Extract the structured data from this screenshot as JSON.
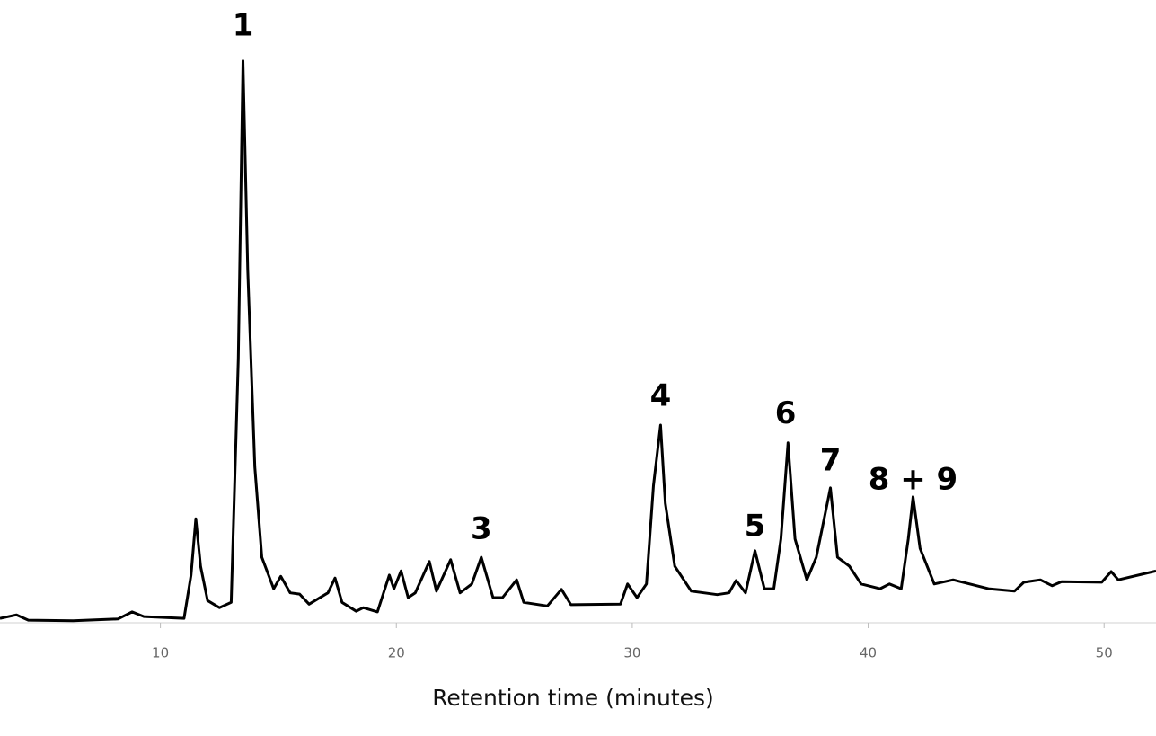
{
  "chart_data": {
    "type": "line",
    "x_label": "Retention time (minutes)",
    "x": [
      3.2,
      3.9,
      4.4,
      6.3,
      8.2,
      8.8,
      9.3,
      11.0,
      11.3,
      11.5,
      11.7,
      12.0,
      12.5,
      13.0,
      13.3,
      13.5,
      13.7,
      14.0,
      14.3,
      14.8,
      15.1,
      15.5,
      15.9,
      16.3,
      17.1,
      17.4,
      17.7,
      18.3,
      18.6,
      19.2,
      19.7,
      19.9,
      20.2,
      20.5,
      20.8,
      21.4,
      21.7,
      22.3,
      22.7,
      23.2,
      23.6,
      24.1,
      24.5,
      25.1,
      25.4,
      26.4,
      27.0,
      27.4,
      29.5,
      29.8,
      30.2,
      30.6,
      30.9,
      31.2,
      31.4,
      31.8,
      32.5,
      33.6,
      34.1,
      34.4,
      34.8,
      35.2,
      35.6,
      36.0,
      36.3,
      36.6,
      36.9,
      37.4,
      37.8,
      38.4,
      38.7,
      39.2,
      39.7,
      40.5,
      40.9,
      41.4,
      41.7,
      41.9,
      42.2,
      42.8,
      43.6,
      45.1,
      46.2,
      46.6,
      47.3,
      47.8,
      48.2,
      49.9,
      50.3,
      50.6,
      52.2
    ],
    "series": [
      {
        "color": "#000000",
        "values": [
          1.8,
          2.4,
          1.5,
          1.4,
          1.7,
          2.9,
          2.1,
          1.8,
          9.1,
          18.6,
          10.6,
          4.8,
          3.6,
          4.5,
          45.5,
          95.8,
          60.6,
          27.3,
          12.1,
          6.8,
          8.9,
          6.1,
          5.9,
          4.2,
          6.1,
          8.6,
          4.5,
          3.0,
          3.6,
          2.9,
          9.1,
          6.8,
          9.8,
          5.3,
          6.1,
          11.4,
          6.4,
          11.7,
          6.1,
          7.6,
          12.1,
          5.3,
          5.3,
          8.3,
          4.5,
          3.9,
          6.7,
          4.1,
          4.2,
          7.6,
          5.3,
          7.6,
          24.2,
          34.4,
          21.2,
          10.6,
          6.4,
          5.8,
          6.1,
          8.2,
          6.1,
          13.2,
          6.8,
          6.8,
          15.2,
          31.4,
          15.2,
          8.3,
          12.1,
          23.8,
          12.1,
          10.6,
          7.6,
          6.8,
          7.6,
          6.8,
          15.2,
          22.3,
          13.6,
          7.6,
          8.3,
          6.8,
          6.4,
          7.9,
          8.3,
          7.3,
          8.0,
          7.9,
          9.7,
          8.3,
          9.8
        ]
      }
    ],
    "xlim": [
      3.2,
      52.2
    ],
    "xticks": [
      10,
      20,
      30,
      40,
      50
    ],
    "ylim": [
      0,
      100
    ],
    "annotations": [
      {
        "text": "1",
        "x": 13.5,
        "y": 101.5
      },
      {
        "text": "3",
        "x": 23.6,
        "y": 16.7
      },
      {
        "text": "4",
        "x": 31.2,
        "y": 39.1
      },
      {
        "text": "5",
        "x": 35.2,
        "y": 17.1
      },
      {
        "text": "6",
        "x": 36.5,
        "y": 36.1
      },
      {
        "text": "7",
        "x": 38.4,
        "y": 28.2
      },
      {
        "text": "8 + 9",
        "x": 41.9,
        "y": 25.0
      }
    ]
  }
}
